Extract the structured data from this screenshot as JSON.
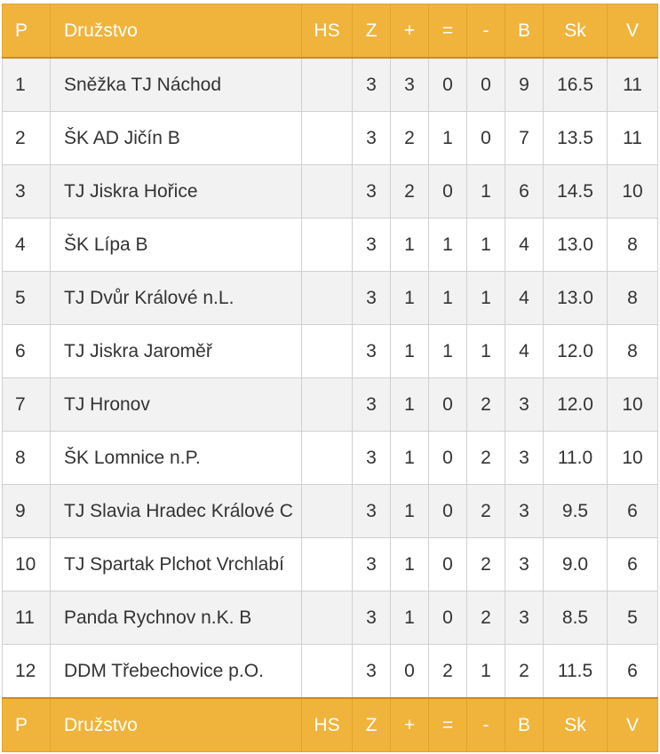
{
  "headers": {
    "p": "P",
    "team": "Družstvo",
    "hs": "HS",
    "z": "Z",
    "plus": "+",
    "eq": "=",
    "minus": "-",
    "b": "B",
    "sk": "Sk",
    "v": "V"
  },
  "rows": [
    {
      "p": "1",
      "team": "Sněžka TJ Náchod",
      "hs": "",
      "z": "3",
      "plus": "3",
      "eq": "0",
      "minus": "0",
      "b": "9",
      "sk": "16.5",
      "v": "11"
    },
    {
      "p": "2",
      "team": "ŠK AD Jičín B",
      "hs": "",
      "z": "3",
      "plus": "2",
      "eq": "1",
      "minus": "0",
      "b": "7",
      "sk": "13.5",
      "v": "11"
    },
    {
      "p": "3",
      "team": "TJ Jiskra Hořice",
      "hs": "",
      "z": "3",
      "plus": "2",
      "eq": "0",
      "minus": "1",
      "b": "6",
      "sk": "14.5",
      "v": "10"
    },
    {
      "p": "4",
      "team": "ŠK Lípa B",
      "hs": "",
      "z": "3",
      "plus": "1",
      "eq": "1",
      "minus": "1",
      "b": "4",
      "sk": "13.0",
      "v": "8"
    },
    {
      "p": "5",
      "team": "TJ Dvůr Králové n.L.",
      "hs": "",
      "z": "3",
      "plus": "1",
      "eq": "1",
      "minus": "1",
      "b": "4",
      "sk": "13.0",
      "v": "8"
    },
    {
      "p": "6",
      "team": "TJ Jiskra Jaroměř",
      "hs": "",
      "z": "3",
      "plus": "1",
      "eq": "1",
      "minus": "1",
      "b": "4",
      "sk": "12.0",
      "v": "8"
    },
    {
      "p": "7",
      "team": "TJ Hronov",
      "hs": "",
      "z": "3",
      "plus": "1",
      "eq": "0",
      "minus": "2",
      "b": "3",
      "sk": "12.0",
      "v": "10"
    },
    {
      "p": "8",
      "team": "ŠK Lomnice n.P.",
      "hs": "",
      "z": "3",
      "plus": "1",
      "eq": "0",
      "minus": "2",
      "b": "3",
      "sk": "11.0",
      "v": "10"
    },
    {
      "p": "9",
      "team": "TJ Slavia Hradec Králové C",
      "hs": "",
      "z": "3",
      "plus": "1",
      "eq": "0",
      "minus": "2",
      "b": "3",
      "sk": "9.5",
      "v": "6"
    },
    {
      "p": "10",
      "team": "TJ Spartak Plchot Vrchlabí",
      "hs": "",
      "z": "3",
      "plus": "1",
      "eq": "0",
      "minus": "2",
      "b": "3",
      "sk": "9.0",
      "v": "6"
    },
    {
      "p": "11",
      "team": "Panda Rychnov n.K. B",
      "hs": "",
      "z": "3",
      "plus": "1",
      "eq": "0",
      "minus": "2",
      "b": "3",
      "sk": "8.5",
      "v": "5"
    },
    {
      "p": "12",
      "team": "DDM Třebechovice p.O.",
      "hs": "",
      "z": "3",
      "plus": "0",
      "eq": "2",
      "minus": "1",
      "b": "2",
      "sk": "11.5",
      "v": "6"
    }
  ],
  "colors": {
    "header_bg": "#f0b43c",
    "header_text": "#ffffff",
    "row_alt_bg": "#f2f2f2"
  }
}
